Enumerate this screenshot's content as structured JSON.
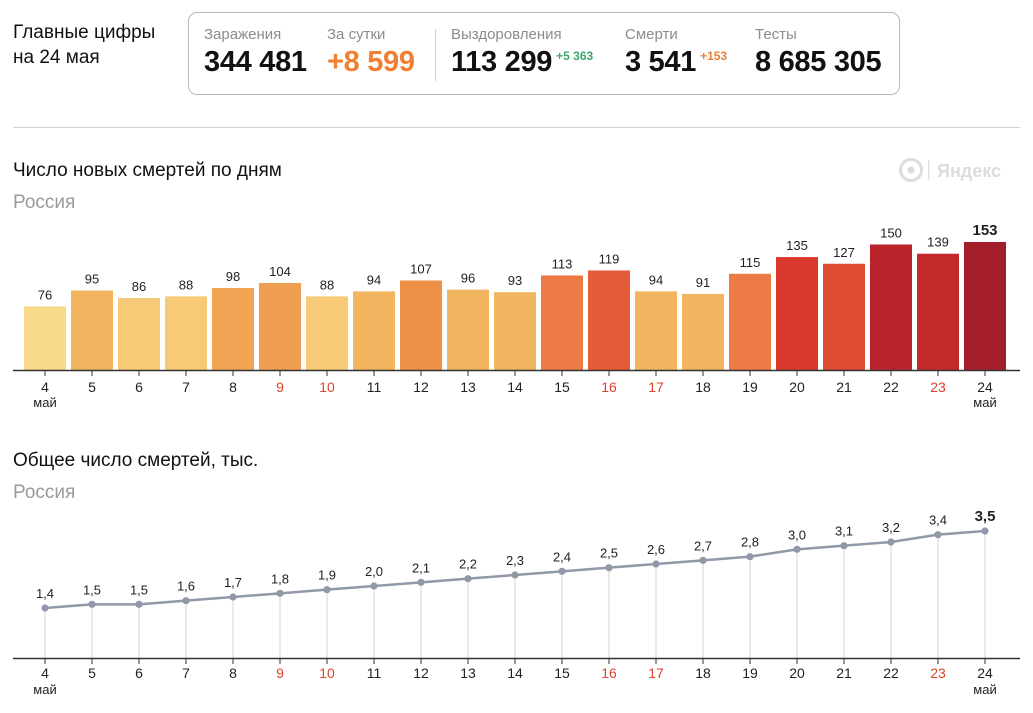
{
  "header": {
    "line1": "Главные цифры",
    "line2": "на 24 мая"
  },
  "stats": {
    "infections": {
      "label": "Заражения",
      "value": "344 481"
    },
    "per_day": {
      "label": "За сутки",
      "value": "+8 599"
    },
    "recovered": {
      "label": "Выздоровления",
      "value": "113 299",
      "delta": "+5 363"
    },
    "deaths": {
      "label": "Смерти",
      "value": "3 541",
      "delta": "+153"
    },
    "tests": {
      "label": "Тесты",
      "value": "8 685 305"
    }
  },
  "brand": {
    "logo_text": "Яндекс"
  },
  "colors": {
    "accent_orange": "#f07f32",
    "accent_green": "#3aa86f",
    "weekend_red": "#e0412b",
    "axis": "#333333",
    "line": "#9198a8"
  },
  "chart_data": [
    {
      "type": "bar",
      "title": "Число новых смертей по дням",
      "subtitle": "Россия",
      "categories": [
        "4",
        "5",
        "6",
        "7",
        "8",
        "9",
        "10",
        "11",
        "12",
        "13",
        "14",
        "15",
        "16",
        "17",
        "18",
        "19",
        "20",
        "21",
        "22",
        "23",
        "24"
      ],
      "first_sublabel": "май",
      "last_sublabel": "май",
      "weekend_categories": [
        "9",
        "10",
        "16",
        "17",
        "23"
      ],
      "values": [
        76,
        95,
        86,
        88,
        98,
        104,
        88,
        94,
        107,
        96,
        93,
        113,
        119,
        94,
        91,
        115,
        135,
        127,
        150,
        139,
        153
      ],
      "colors": [
        "#f9d98a",
        "#f2b55f",
        "#f6ca77",
        "#f6ca77",
        "#f0a454",
        "#ef9d50",
        "#f6ca77",
        "#f2b55f",
        "#ed9048",
        "#f2b55f",
        "#f2b55f",
        "#ec7a45",
        "#e65b3a",
        "#f2b55f",
        "#f2b55f",
        "#ec7a45",
        "#d8392c",
        "#de4a32",
        "#b9232c",
        "#c42a2b",
        "#a31e2a"
      ],
      "highlight_last": true,
      "ylim": [
        0,
        165
      ]
    },
    {
      "type": "line",
      "title": "Общее число смертей, тыс.",
      "subtitle": "Россия",
      "categories": [
        "4",
        "5",
        "6",
        "7",
        "8",
        "9",
        "10",
        "11",
        "12",
        "13",
        "14",
        "15",
        "16",
        "17",
        "18",
        "19",
        "20",
        "21",
        "22",
        "23",
        "24"
      ],
      "first_sublabel": "май",
      "last_sublabel": "май",
      "weekend_categories": [
        "9",
        "10",
        "16",
        "17",
        "23"
      ],
      "values": [
        1.4,
        1.5,
        1.5,
        1.6,
        1.7,
        1.8,
        1.9,
        2.0,
        2.1,
        2.2,
        2.3,
        2.4,
        2.5,
        2.6,
        2.7,
        2.8,
        3.0,
        3.1,
        3.2,
        3.4,
        3.5
      ],
      "value_labels": [
        "1,4",
        "1,5",
        "1,5",
        "1,6",
        "1,7",
        "1,8",
        "1,9",
        "2,0",
        "2,1",
        "2,2",
        "2,3",
        "2,4",
        "2,5",
        "2,6",
        "2,7",
        "2,8",
        "3,0",
        "3,1",
        "3,2",
        "3,4",
        "3,5"
      ],
      "highlight_last": true,
      "ylim": [
        0,
        3.5
      ]
    }
  ]
}
